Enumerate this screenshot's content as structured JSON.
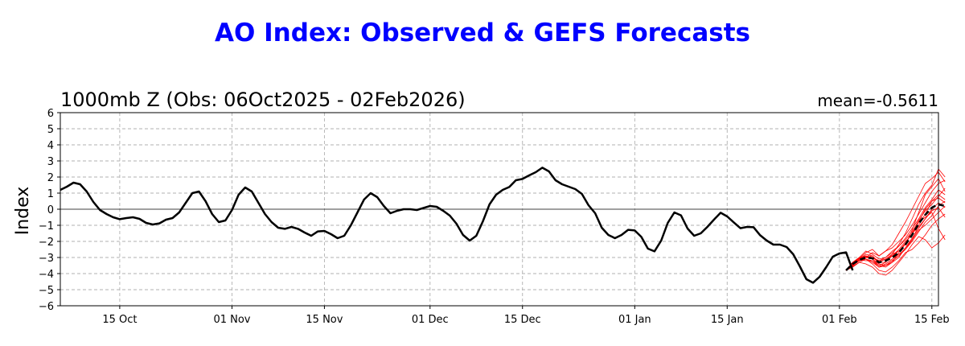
{
  "chart_data": {
    "type": "line",
    "title": "AO Index: Observed & GEFS Forecasts",
    "subtitle": "1000mb Z (Obs: 06Oct2025 - 02Feb2026)",
    "mean_label": "mean=-0.5611",
    "ylabel": "Index",
    "xlabel": "",
    "ylim": [
      -6,
      6
    ],
    "yticks": [
      -6,
      -5,
      -4,
      -3,
      -2,
      -1,
      0,
      1,
      2,
      3,
      4,
      5,
      6
    ],
    "xlim": [
      "2025-10-06",
      "2026-02-16"
    ],
    "xticks": [
      {
        "date": "2025-10-15",
        "label": "15 Oct"
      },
      {
        "date": "2025-11-01",
        "label": "01 Nov"
      },
      {
        "date": "2025-11-15",
        "label": "15 Nov"
      },
      {
        "date": "2025-12-01",
        "label": "01 Dec"
      },
      {
        "date": "2025-12-15",
        "label": "15 Dec"
      },
      {
        "date": "2026-01-01",
        "label": "01 Jan"
      },
      {
        "date": "2026-01-15",
        "label": "15 Jan"
      },
      {
        "date": "2026-02-01",
        "label": "01 Feb"
      },
      {
        "date": "2026-02-15",
        "label": "15 Feb"
      }
    ],
    "grid": true,
    "colors": {
      "title": "#0000ff",
      "observed": "#000000",
      "members": "#ff0000",
      "mean": "#000000",
      "grid": "#b0b0b0"
    },
    "observed": {
      "start": "2025-10-06",
      "values": [
        1.2,
        1.4,
        1.65,
        1.55,
        1.1,
        0.45,
        -0.05,
        -0.3,
        -0.5,
        -0.62,
        -0.55,
        -0.5,
        -0.6,
        -0.85,
        -0.95,
        -0.88,
        -0.65,
        -0.55,
        -0.2,
        0.4,
        1.0,
        1.1,
        0.5,
        -0.3,
        -0.8,
        -0.7,
        -0.05,
        0.9,
        1.35,
        1.1,
        0.4,
        -0.3,
        -0.8,
        -1.15,
        -1.22,
        -1.1,
        -1.22,
        -1.45,
        -1.65,
        -1.38,
        -1.35,
        -1.55,
        -1.8,
        -1.65,
        -1.0,
        -0.2,
        0.6,
        1.0,
        0.75,
        0.2,
        -0.25,
        -0.1,
        0.0,
        0.0,
        -0.05,
        0.08,
        0.2,
        0.15,
        -0.1,
        -0.4,
        -0.9,
        -1.6,
        -1.95,
        -1.65,
        -0.75,
        0.3,
        0.9,
        1.2,
        1.38,
        1.8,
        1.88,
        2.1,
        2.3,
        2.58,
        2.35,
        1.8,
        1.55,
        1.4,
        1.25,
        0.95,
        0.25,
        -0.25,
        -1.15,
        -1.6,
        -1.8,
        -1.6,
        -1.28,
        -1.32,
        -1.72,
        -2.45,
        -2.62,
        -1.95,
        -0.85,
        -0.2,
        -0.38,
        -1.2,
        -1.65,
        -1.5,
        -1.1,
        -0.65,
        -0.22,
        -0.45,
        -0.82,
        -1.18,
        -1.1,
        -1.12,
        -1.62,
        -1.95,
        -2.2,
        -2.2,
        -2.35,
        -2.8,
        -3.55,
        -4.35,
        -4.57,
        -4.2,
        -3.6,
        -2.95,
        -2.75,
        -2.68,
        -3.8
      ]
    },
    "forecast": {
      "start": "2026-02-02",
      "ensemble_mean": [
        -3.8,
        -3.4,
        -3.15,
        -3.0,
        -3.05,
        -3.3,
        -3.2,
        -3.0,
        -2.7,
        -2.2,
        -1.6,
        -0.9,
        -0.35,
        0.1,
        0.3,
        0.2
      ],
      "members": [
        [
          -3.8,
          -3.35,
          -3.05,
          -2.7,
          -2.5,
          -2.9,
          -2.6,
          -2.2,
          -1.5,
          -0.8,
          0.0,
          0.8,
          1.6,
          1.9,
          2.3,
          1.7
        ],
        [
          -3.8,
          -3.5,
          -3.2,
          -3.1,
          -3.4,
          -3.8,
          -3.9,
          -3.6,
          -3.2,
          -2.7,
          -2.5,
          -2.1,
          -1.6,
          -1.0,
          -0.6,
          -0.3
        ],
        [
          -3.8,
          -3.3,
          -3.0,
          -2.9,
          -3.0,
          -3.2,
          -3.1,
          -2.8,
          -2.6,
          -2.2,
          -1.3,
          -0.2,
          0.9,
          1.4,
          1.9,
          1.1
        ],
        [
          -3.8,
          -3.6,
          -3.3,
          -3.4,
          -3.6,
          -4.0,
          -4.1,
          -3.8,
          -3.3,
          -2.8,
          -2.2,
          -1.7,
          -1.9,
          -2.4,
          -2.1,
          -1.6
        ],
        [
          -3.8,
          -3.45,
          -3.1,
          -2.8,
          -2.9,
          -3.4,
          -3.5,
          -3.2,
          -2.9,
          -2.5,
          -1.9,
          -1.0,
          -0.3,
          0.5,
          0.9,
          0.6
        ],
        [
          -3.8,
          -3.3,
          -3.2,
          -3.0,
          -2.7,
          -2.9,
          -2.6,
          -2.4,
          -2.0,
          -1.6,
          -1.0,
          -0.3,
          0.4,
          1.1,
          1.6,
          1.8
        ],
        [
          -3.8,
          -3.5,
          -3.15,
          -3.2,
          -3.2,
          -3.5,
          -3.6,
          -3.3,
          -3.0,
          -2.4,
          -1.8,
          -1.2,
          -0.6,
          0.0,
          0.4,
          0.1
        ],
        [
          -3.8,
          -3.4,
          -3.0,
          -2.6,
          -2.8,
          -3.1,
          -3.0,
          -2.7,
          -2.3,
          -1.8,
          -1.2,
          -0.6,
          0.1,
          0.6,
          1.2,
          0.9
        ],
        [
          -3.8,
          -3.55,
          -3.3,
          -3.1,
          -3.3,
          -3.6,
          -3.4,
          -3.1,
          -2.8,
          -2.5,
          -2.0,
          -1.4,
          -0.8,
          -0.4,
          0.2,
          0.5
        ],
        [
          -3.8,
          -3.4,
          -3.1,
          -3.0,
          -2.9,
          -3.3,
          -3.3,
          -2.9,
          -2.5,
          -2.0,
          -1.6,
          -0.8,
          0.0,
          0.5,
          0.7,
          0.4
        ],
        [
          -3.8,
          -3.35,
          -3.05,
          -2.9,
          -3.1,
          -3.5,
          -3.3,
          -2.8,
          -2.2,
          -1.5,
          -0.6,
          0.3,
          1.0,
          1.5,
          2.5,
          2.0
        ],
        [
          -3.8,
          -3.5,
          -3.2,
          -3.0,
          -3.1,
          -3.4,
          -3.5,
          -3.2,
          -2.9,
          -2.4,
          -1.9,
          -1.3,
          -1.0,
          -0.6,
          -0.2,
          0.2
        ],
        [
          -3.8,
          -3.3,
          -3.0,
          -2.95,
          -3.0,
          -3.2,
          -3.0,
          -2.6,
          -2.3,
          -1.9,
          -1.4,
          -0.7,
          -0.1,
          0.3,
          0.8,
          1.3
        ],
        [
          -3.8,
          -3.45,
          -3.2,
          -3.1,
          -3.2,
          -3.6,
          -3.5,
          -3.3,
          -2.7,
          -2.1,
          -1.5,
          -0.8,
          -0.5,
          -0.2,
          -1.2,
          -1.9
        ],
        [
          -3.8,
          -3.4,
          -3.1,
          -2.9,
          -3.0,
          -3.3,
          -3.1,
          -2.9,
          -2.6,
          -2.1,
          -1.5,
          -1.1,
          -0.6,
          -0.1,
          0.1,
          -0.5
        ]
      ]
    }
  }
}
